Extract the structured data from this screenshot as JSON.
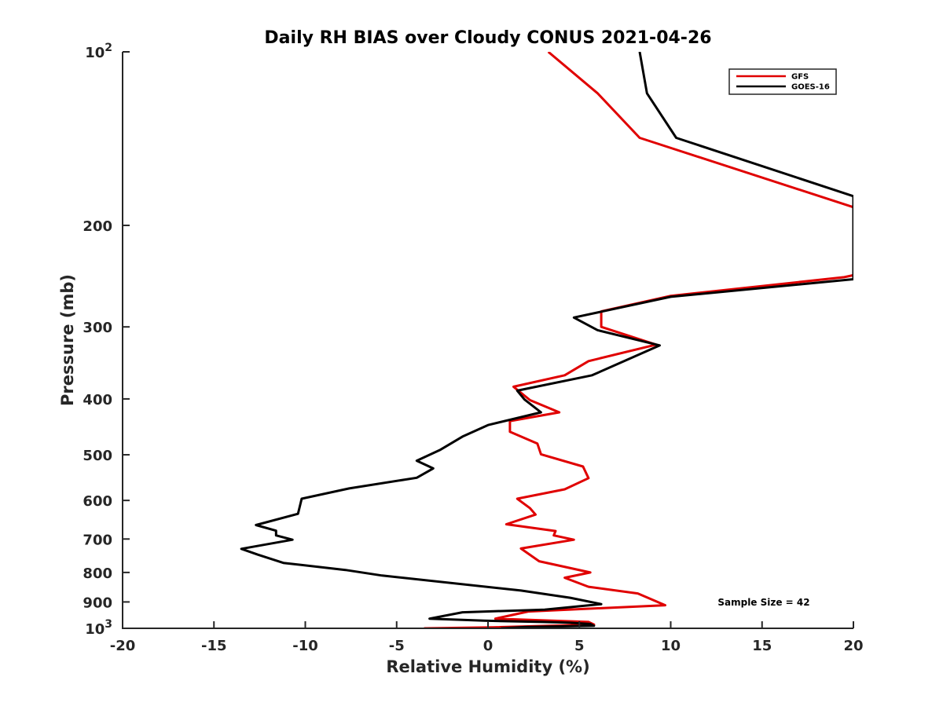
{
  "chart_data": {
    "type": "line",
    "title": "Daily RH BIAS over Cloudy CONUS 2021-04-26",
    "xlabel": "Relative Humidity (%)",
    "ylabel": "Pressure (mb)",
    "xlim": [
      -20,
      20
    ],
    "ylim": [
      100,
      1000
    ],
    "yscale": "log",
    "y_reversed": true,
    "grid": false,
    "legend_position": "top-right",
    "x_ticks": [
      -20,
      -15,
      -10,
      -5,
      0,
      5,
      10,
      15,
      20
    ],
    "x_tick_labels": [
      "-20",
      "-15",
      "-10",
      "-5",
      "0",
      "5",
      "10",
      "15",
      "20"
    ],
    "y_ticks": [
      100,
      200,
      300,
      400,
      500,
      600,
      700,
      800,
      900,
      1000
    ],
    "y_tick_labels": [
      {
        "base": "10",
        "exp": "2"
      },
      {
        "base": "200",
        "exp": ""
      },
      {
        "base": "300",
        "exp": ""
      },
      {
        "base": "400",
        "exp": ""
      },
      {
        "base": "500",
        "exp": ""
      },
      {
        "base": "600",
        "exp": ""
      },
      {
        "base": "700",
        "exp": ""
      },
      {
        "base": "800",
        "exp": ""
      },
      {
        "base": "900",
        "exp": ""
      },
      {
        "base": "10",
        "exp": "3"
      }
    ],
    "annotation": "Sample Size = 42",
    "series": [
      {
        "name": "GFS",
        "color": "#e00000",
        "points": [
          [
            3.3,
            100
          ],
          [
            6.0,
            118
          ],
          [
            8.3,
            141
          ],
          [
            20.0,
            186
          ],
          [
            20.0,
            244
          ],
          [
            19.5,
            246
          ],
          [
            10.0,
            265
          ],
          [
            6.2,
            282
          ],
          [
            6.2,
            300
          ],
          [
            9.2,
            322
          ],
          [
            5.5,
            344
          ],
          [
            4.2,
            364
          ],
          [
            1.4,
            381
          ],
          [
            2.3,
            402
          ],
          [
            3.9,
            422
          ],
          [
            1.2,
            437
          ],
          [
            1.2,
            456
          ],
          [
            2.7,
            478
          ],
          [
            2.9,
            499
          ],
          [
            5.2,
            524
          ],
          [
            5.5,
            549
          ],
          [
            4.2,
            574
          ],
          [
            1.6,
            596
          ],
          [
            2.3,
            619
          ],
          [
            2.6,
            635
          ],
          [
            1.0,
            660
          ],
          [
            3.7,
            678
          ],
          [
            3.6,
            690
          ],
          [
            4.7,
            702
          ],
          [
            1.8,
            727
          ],
          [
            2.8,
            765
          ],
          [
            5.6,
            800
          ],
          [
            4.2,
            817
          ],
          [
            5.5,
            847
          ],
          [
            8.2,
            870
          ],
          [
            9.7,
            912
          ],
          [
            2.2,
            935
          ],
          [
            0.4,
            962
          ],
          [
            5.5,
            975
          ],
          [
            5.8,
            985
          ],
          [
            0.3,
            996
          ],
          [
            -3.5,
            1000
          ]
        ]
      },
      {
        "name": "GOES-16",
        "color": "#000000",
        "points": [
          [
            8.3,
            100
          ],
          [
            8.7,
            118
          ],
          [
            10.3,
            141
          ],
          [
            20.0,
            178
          ],
          [
            20.0,
            248
          ],
          [
            10.0,
            266
          ],
          [
            4.7,
            289
          ],
          [
            6.0,
            304
          ],
          [
            9.4,
            323
          ],
          [
            5.7,
            364
          ],
          [
            1.6,
            387
          ],
          [
            2.0,
            401
          ],
          [
            2.9,
            422
          ],
          [
            0.0,
            444
          ],
          [
            -1.4,
            465
          ],
          [
            -2.6,
            490
          ],
          [
            -3.9,
            512
          ],
          [
            -3.0,
            528
          ],
          [
            -3.9,
            548
          ],
          [
            -7.6,
            572
          ],
          [
            -10.2,
            596
          ],
          [
            -10.4,
            633
          ],
          [
            -12.7,
            662
          ],
          [
            -11.6,
            677
          ],
          [
            -11.6,
            690
          ],
          [
            -10.7,
            702
          ],
          [
            -13.5,
            728
          ],
          [
            -12.6,
            745
          ],
          [
            -11.2,
            770
          ],
          [
            -7.8,
            792
          ],
          [
            -5.8,
            810
          ],
          [
            1.8,
            860
          ],
          [
            4.5,
            885
          ],
          [
            6.2,
            908
          ],
          [
            3.1,
            928
          ],
          [
            -1.4,
            938
          ],
          [
            -3.2,
            962
          ],
          [
            -0.2,
            970
          ],
          [
            3.0,
            975
          ],
          [
            4.5,
            978
          ],
          [
            5.6,
            983
          ],
          [
            5.8,
            990
          ],
          [
            2.0,
            995
          ],
          [
            0.7,
            1000
          ]
        ]
      }
    ]
  }
}
